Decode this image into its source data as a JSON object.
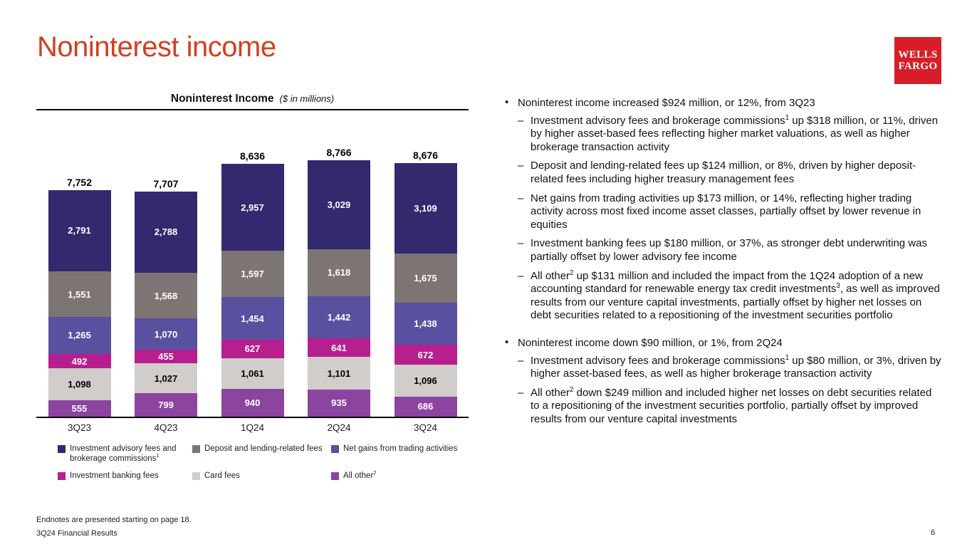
{
  "page": {
    "title": "Noninterest income",
    "footer_endnote": "Endnotes are presented starting on page 18.",
    "footer_label": "3Q24 Financial Results",
    "page_number": "6"
  },
  "logo": {
    "line1": "WELLS",
    "line2": "FARGO"
  },
  "colors": {
    "title_red": "#D23F22",
    "logo_red": "#D71E28",
    "axis_black": "#000000"
  },
  "chart_data": {
    "type": "bar",
    "stacked": true,
    "title": "Noninterest Income",
    "title_note": "($ in millions)",
    "categories": [
      "3Q23",
      "4Q23",
      "1Q24",
      "2Q24",
      "3Q24"
    ],
    "totals": [
      7752,
      7707,
      8636,
      8766,
      8676
    ],
    "series": [
      {
        "name": "Investment advisory fees and brokerage commissions^1",
        "color": "#33296F",
        "label_color": "#FFFFFF",
        "values": [
          2791,
          2788,
          2957,
          3029,
          3109
        ]
      },
      {
        "name": "Deposit and lending-related fees",
        "color": "#7C7573",
        "label_color": "#FFFFFF",
        "values": [
          1551,
          1568,
          1597,
          1618,
          1675
        ]
      },
      {
        "name": "Net gains from trading activities",
        "color": "#5A50A0",
        "label_color": "#FFFFFF",
        "values": [
          1265,
          1070,
          1454,
          1442,
          1438
        ]
      },
      {
        "name": "Investment banking fees",
        "color": "#B71E8E",
        "label_color": "#FFFFFF",
        "values": [
          492,
          455,
          627,
          641,
          672
        ]
      },
      {
        "name": "Card fees",
        "color": "#D0CDCB",
        "label_color": "#000000",
        "values": [
          1098,
          1027,
          1061,
          1101,
          1096
        ]
      },
      {
        "name": "All other^2",
        "color": "#8C44A1",
        "label_color": "#FFFFFF",
        "values": [
          555,
          799,
          940,
          935,
          686
        ]
      }
    ],
    "legend_position": "bottom",
    "xlabel": "",
    "ylabel": "",
    "grid": false,
    "y_axis_visible": false
  },
  "bullets": [
    {
      "text": "Noninterest income increased $924 million, or 12%, from 3Q23",
      "subs": [
        "Investment advisory fees and brokerage commissions^1 up $318 million, or 11%, driven by higher asset-based fees reflecting higher market valuations, as well as higher brokerage transaction activity",
        "Deposit and lending-related fees up $124 million, or 8%, driven by higher deposit-related fees including higher treasury management fees",
        "Net gains from trading activities up $173 million, or 14%, reflecting higher trading activity across most fixed income asset classes, partially offset by lower revenue in equities",
        "Investment banking fees up $180 million, or 37%, as stronger debt underwriting was partially offset by lower advisory fee income",
        "All other^2 up $131 million and included the impact from the 1Q24 adoption of a new accounting standard for renewable energy tax credit investments^3, as well as improved results from our venture capital investments, partially offset by higher net losses on debt securities related to a repositioning of the investment securities portfolio"
      ]
    },
    {
      "text": "Noninterest income down $90 million, or 1%, from 2Q24",
      "subs": [
        "Investment advisory fees and brokerage commissions^1 up $80 million, or 3%, driven by higher asset-based fees, as well as higher brokerage transaction activity",
        "All other^2 down $249 million and included higher net losses on debt securities related to a repositioning of the investment securities portfolio, partially offset by improved results from our venture capital investments"
      ]
    }
  ]
}
